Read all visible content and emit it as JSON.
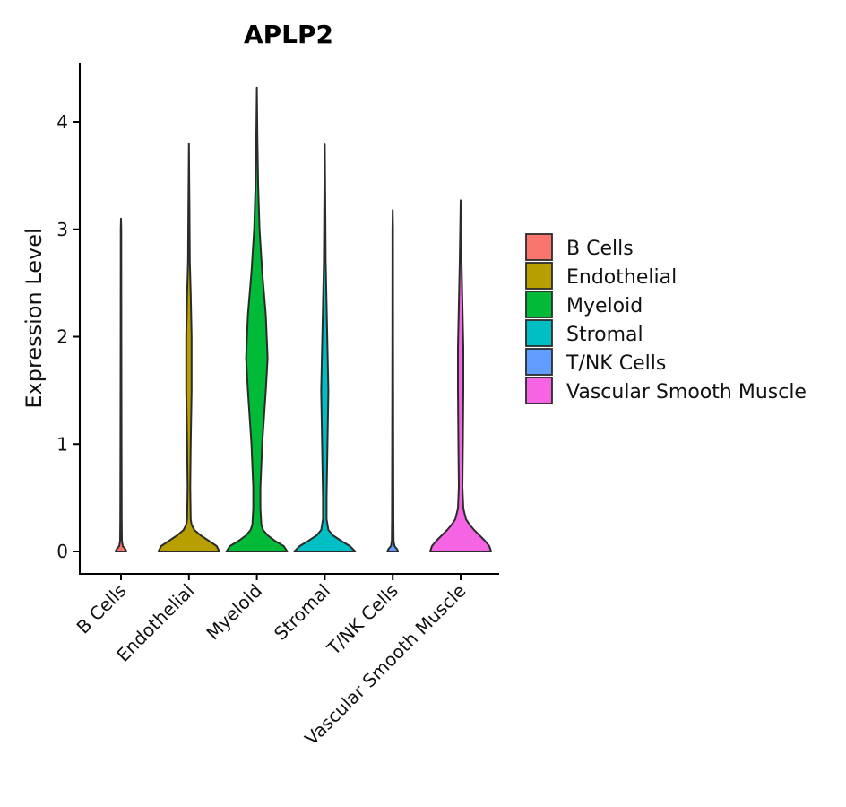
{
  "chart_data": {
    "type": "violin",
    "title": "APLP2",
    "xlabel": "",
    "ylabel": "Expression Level",
    "ylim": [
      -0.2,
      4.55
    ],
    "yticks": [
      0,
      1,
      2,
      3,
      4
    ],
    "categories": [
      "B Cells",
      "Endothelial",
      "Myeloid",
      "Stromal",
      "T/NK Cells",
      "Vascular Smooth Muscle"
    ],
    "colors": [
      "#F8766D",
      "#B79F00",
      "#00BA38",
      "#00BFC4",
      "#619CFF",
      "#F564E3"
    ],
    "max_values": [
      3.1,
      3.8,
      4.32,
      3.79,
      3.18,
      3.27
    ],
    "legend_title": "",
    "legend_position": "right",
    "grid": false
  }
}
